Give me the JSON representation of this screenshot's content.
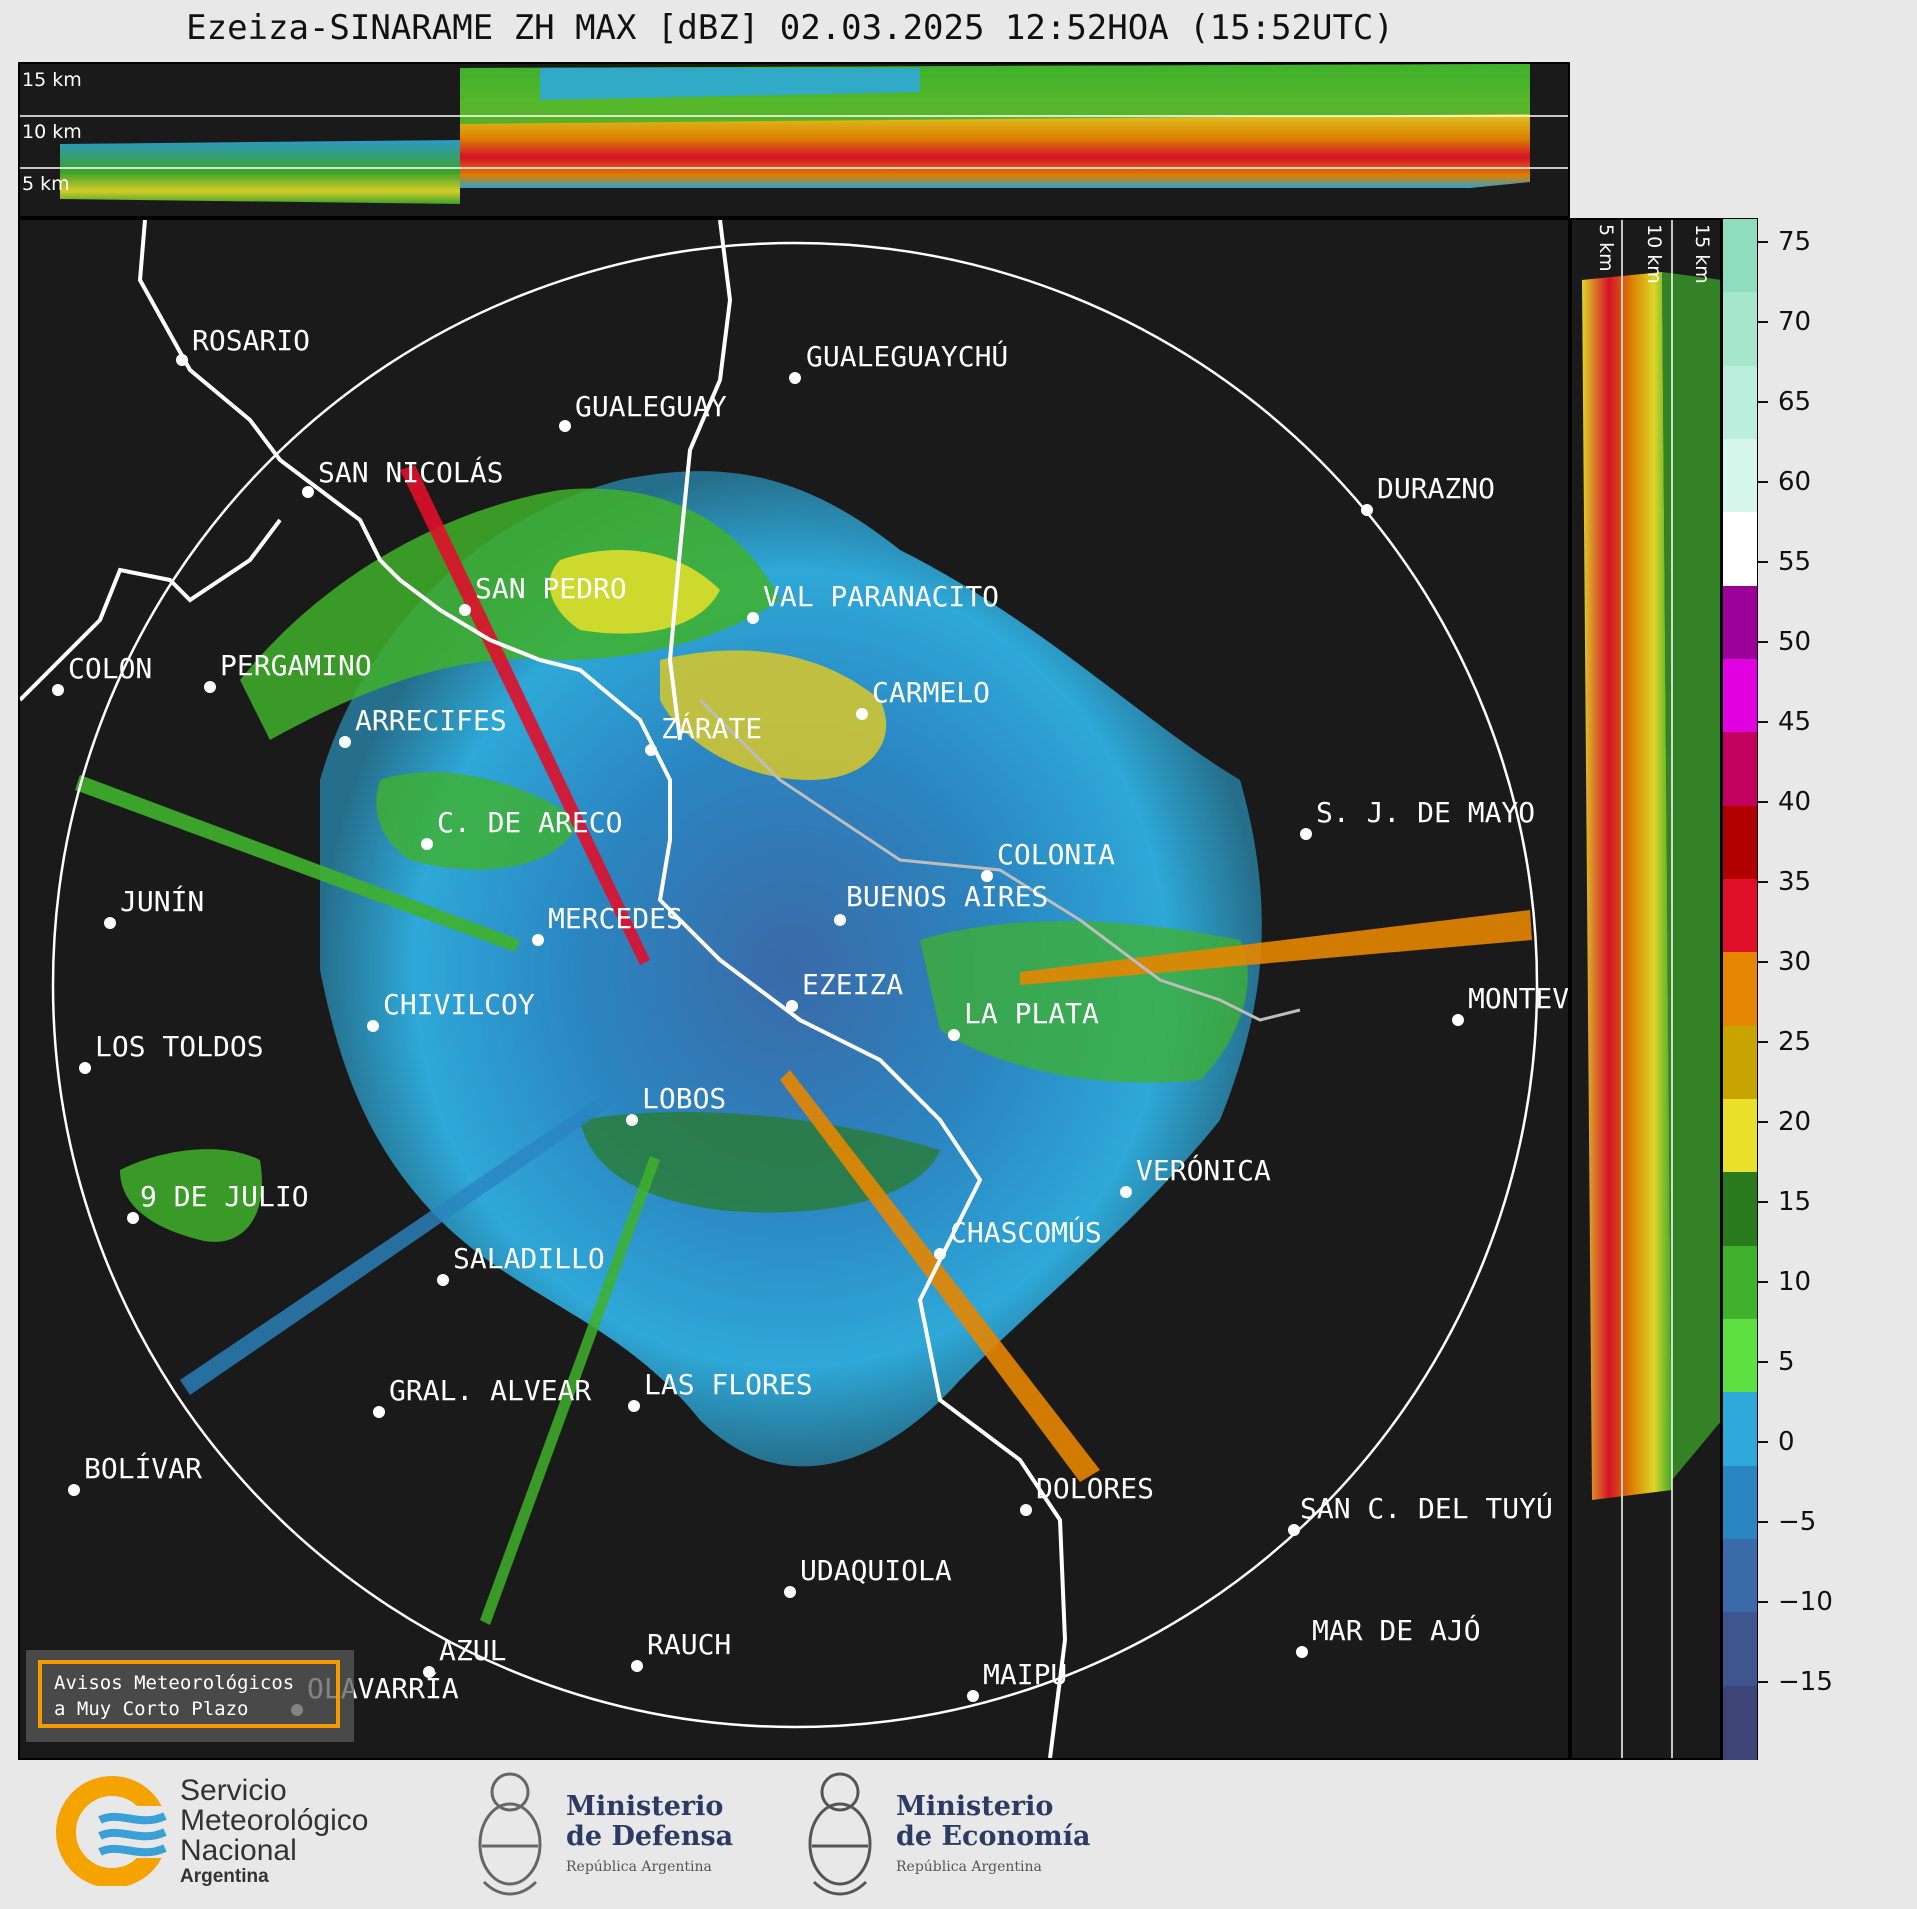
{
  "title": "Ezeiza-SINARAME ZH MAX [dBZ] 02.03.2025 12:52HOA (15:52UTC)",
  "height_labels": {
    "top": [
      "15 km",
      "10 km",
      "5 km"
    ],
    "side": [
      "5 km",
      "10 km",
      "15 km"
    ]
  },
  "cities": [
    {
      "name": "ROSARIO"
    },
    {
      "name": "GUALEGUAYCHÚ"
    },
    {
      "name": "GUALEGUAY"
    },
    {
      "name": "SAN NICOLÁS"
    },
    {
      "name": "DURAZNO"
    },
    {
      "name": "SAN PEDRO"
    },
    {
      "name": "VAL PARANACITO"
    },
    {
      "name": "COLON"
    },
    {
      "name": "PERGAMINO"
    },
    {
      "name": "CARMELO"
    },
    {
      "name": "ARRECIFES"
    },
    {
      "name": "ZÁRATE"
    },
    {
      "name": "S. J. DE MAYO"
    },
    {
      "name": "C. DE ARECO"
    },
    {
      "name": "COLONIA"
    },
    {
      "name": "JUNÍN"
    },
    {
      "name": "BUENOS AIRES"
    },
    {
      "name": "MERCEDES"
    },
    {
      "name": "EZEIZA"
    },
    {
      "name": "MONTEV"
    },
    {
      "name": "CHIVILCOY"
    },
    {
      "name": "LA PLATA"
    },
    {
      "name": "LOS TOLDOS"
    },
    {
      "name": "LOBOS"
    },
    {
      "name": "VERÓNICA"
    },
    {
      "name": "9 DE JULIO"
    },
    {
      "name": "CHASCOMÚS"
    },
    {
      "name": "SALADILLO"
    },
    {
      "name": "GRAL. ALVEAR"
    },
    {
      "name": "LAS FLORES"
    },
    {
      "name": "BOLÍVAR"
    },
    {
      "name": "DOLORES"
    },
    {
      "name": "SAN C. DEL TUYÚ"
    },
    {
      "name": "UDAQUIOLA"
    },
    {
      "name": "MAR DE AJÓ"
    },
    {
      "name": "RAUCH"
    },
    {
      "name": "AZUL"
    },
    {
      "name": "OLAVARRÍA"
    },
    {
      "name": "MAIPU"
    }
  ],
  "colorbar": {
    "unit": "dBZ",
    "ticks": [
      "75",
      "70",
      "65",
      "60",
      "55",
      "50",
      "45",
      "40",
      "35",
      "30",
      "25",
      "20",
      "15",
      "10",
      "5",
      "0",
      "−5",
      "−10",
      "−15"
    ],
    "colors": [
      "#8fdcbf",
      "#a5e6cd",
      "#bbeedc",
      "#d6f6ec",
      "#ffffff",
      "#9b0099",
      "#e000e0",
      "#c2005e",
      "#b00000",
      "#e0102a",
      "#e58600",
      "#c8a400",
      "#e8e02a",
      "#2a7a1e",
      "#3fb12c",
      "#5ee040",
      "#2ea8d8",
      "#2b85c0",
      "#3a6aa8",
      "#3f5590",
      "#3f4478"
    ]
  },
  "notice": {
    "line1": "Avisos Meteorológicos",
    "line2": "a Muy Corto Plazo"
  },
  "logos": {
    "smn": {
      "line1": "Servicio",
      "line2": "Meteorológico",
      "line3": "Nacional",
      "line4": "Argentina"
    },
    "defensa": {
      "line1": "Ministerio",
      "line2": "de Defensa",
      "line3": "República Argentina"
    },
    "economia": {
      "line1": "Ministerio",
      "line2": "de Economía",
      "line3": "República Argentina"
    }
  }
}
